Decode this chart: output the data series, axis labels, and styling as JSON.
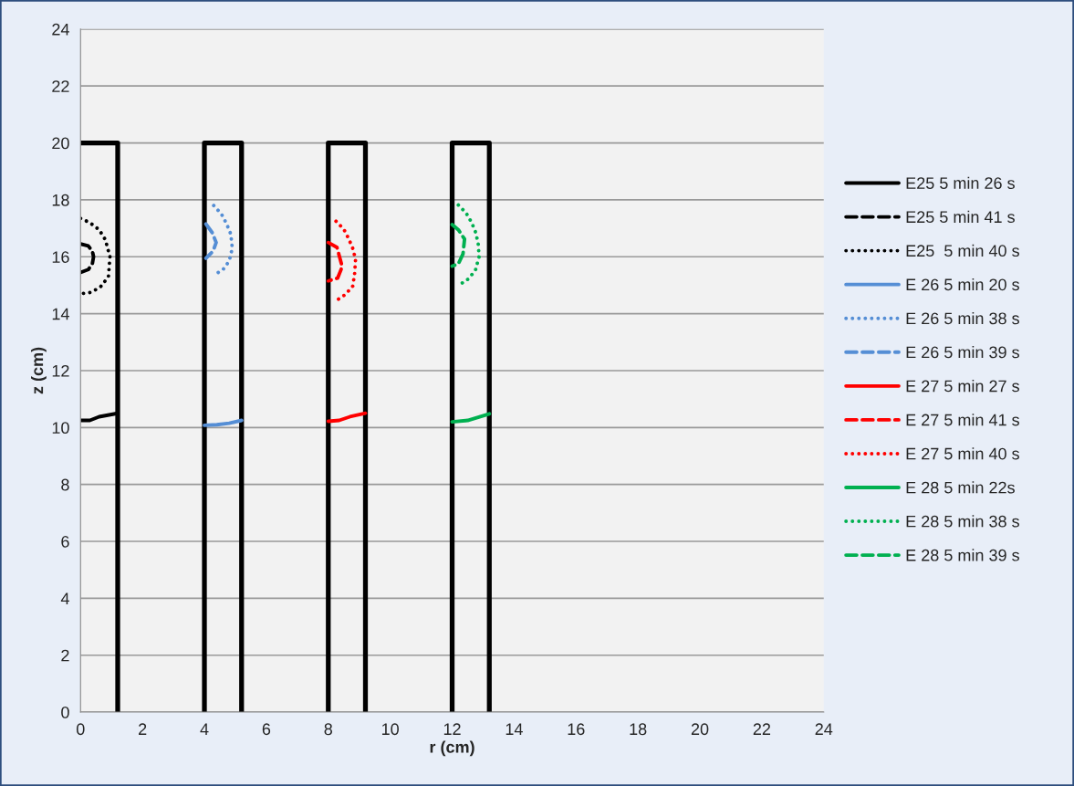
{
  "chart_data": {
    "type": "line",
    "xlabel": "r (cm)",
    "ylabel": "z (cm)",
    "xlim": [
      0,
      24
    ],
    "ylim": [
      0,
      24
    ],
    "xticks": [
      0,
      2,
      4,
      6,
      8,
      10,
      12,
      14,
      16,
      18,
      20,
      22,
      24
    ],
    "yticks": [
      0,
      2,
      4,
      6,
      8,
      10,
      12,
      14,
      16,
      18,
      20,
      22,
      24
    ],
    "grid": "y",
    "legend": "right",
    "marker": "none",
    "series": [
      {
        "color": "#000000",
        "line_style": "solid",
        "x": [
          0,
          1.2,
          1.2
        ],
        "values": [
          20,
          20,
          0
        ]
      },
      {
        "color": "#000000",
        "line_style": "solid",
        "x": [
          4.0,
          4.0,
          5.2,
          5.2
        ],
        "values": [
          0,
          20,
          20,
          0
        ]
      },
      {
        "color": "#000000",
        "line_style": "solid",
        "x": [
          8.0,
          8.0,
          9.2,
          9.2
        ],
        "values": [
          0,
          20,
          20,
          0
        ]
      },
      {
        "color": "#000000",
        "line_style": "solid",
        "x": [
          12.0,
          12.0,
          13.2,
          13.2
        ],
        "values": [
          0,
          20,
          20,
          0
        ]
      },
      {
        "name": "E25 5 min 26 s",
        "color": "#000000",
        "line_style": "solid",
        "x": [
          0,
          0.3,
          0.6,
          1.2
        ],
        "values": [
          10.25,
          10.25,
          10.38,
          10.5
        ]
      },
      {
        "name": "E25 5 min 41 s",
        "color": "#000000",
        "line_style": "dashed",
        "x": [
          0,
          0.25,
          0.38,
          0.42,
          0.38,
          0.25,
          0
        ],
        "values": [
          16.45,
          16.38,
          16.2,
          16.0,
          15.75,
          15.55,
          15.45
        ]
      },
      {
        "name": "E25  5 min 40 s",
        "color": "#000000",
        "line_style": "dotted",
        "x": [
          0,
          0.3,
          0.6,
          0.8,
          0.95,
          0.9,
          0.65,
          0.35,
          0
        ],
        "values": [
          17.35,
          17.2,
          16.95,
          16.6,
          16.0,
          15.3,
          14.95,
          14.75,
          14.7
        ]
      },
      {
        "name": "E 26 5 min 20 s",
        "color": "#558ed5",
        "line_style": "solid",
        "x": [
          4.0,
          4.4,
          4.8,
          5.2
        ],
        "values": [
          10.08,
          10.1,
          10.15,
          10.25
        ]
      },
      {
        "name": "E 26 5 min 38 s",
        "color": "#558ed5",
        "line_style": "dotted",
        "x": [
          4.3,
          4.55,
          4.72,
          4.85,
          4.9,
          4.8,
          4.6,
          4.3
        ],
        "values": [
          17.8,
          17.5,
          17.15,
          16.8,
          16.3,
          15.85,
          15.55,
          15.35
        ]
      },
      {
        "name": "E 26 5 min 39 s",
        "color": "#558ed5",
        "line_style": "dashed",
        "x": [
          4.05,
          4.25,
          4.38,
          4.28,
          4.05
        ],
        "values": [
          17.15,
          16.85,
          16.5,
          16.2,
          15.95
        ]
      },
      {
        "name": "E 27 5 min 27 s",
        "color": "#ff0000",
        "line_style": "solid",
        "x": [
          8.0,
          8.35,
          8.7,
          9.2
        ],
        "values": [
          10.22,
          10.25,
          10.38,
          10.5
        ]
      },
      {
        "name": "E 27 5 min 41 s",
        "color": "#ff0000",
        "line_style": "dashed",
        "x": [
          8.0,
          8.28,
          8.45,
          8.3,
          8.0
        ],
        "values": [
          16.5,
          16.33,
          15.65,
          15.25,
          15.15
        ]
      },
      {
        "name": "E 27 5 min 40 s",
        "color": "#ff0000",
        "line_style": "dotted",
        "x": [
          8.25,
          8.5,
          8.66,
          8.8,
          8.88,
          8.85,
          8.79,
          8.55,
          8.27
        ],
        "values": [
          17.25,
          16.97,
          16.63,
          16.27,
          15.9,
          15.4,
          14.97,
          14.67,
          14.47
        ]
      },
      {
        "name": "E 28 5 min 22s",
        "color": "#00b050",
        "line_style": "solid",
        "x": [
          12.0,
          12.5,
          13.2
        ],
        "values": [
          10.2,
          10.25,
          10.48
        ]
      },
      {
        "name": "E 28 5 min 38 s",
        "color": "#00b050",
        "line_style": "dotted",
        "x": [
          12.2,
          12.45,
          12.63,
          12.76,
          12.84,
          12.87,
          12.75,
          12.52,
          12.22
        ],
        "values": [
          17.82,
          17.54,
          17.2,
          16.85,
          16.47,
          16.0,
          15.52,
          15.22,
          15.0
        ]
      },
      {
        "name": "E 28 5 min 39 s",
        "color": "#00b050",
        "line_style": "dashed",
        "x": [
          12.0,
          12.2,
          12.4,
          12.35,
          12.2,
          12.0
        ],
        "values": [
          17.13,
          16.95,
          16.62,
          16.1,
          15.75,
          15.67
        ]
      }
    ]
  }
}
